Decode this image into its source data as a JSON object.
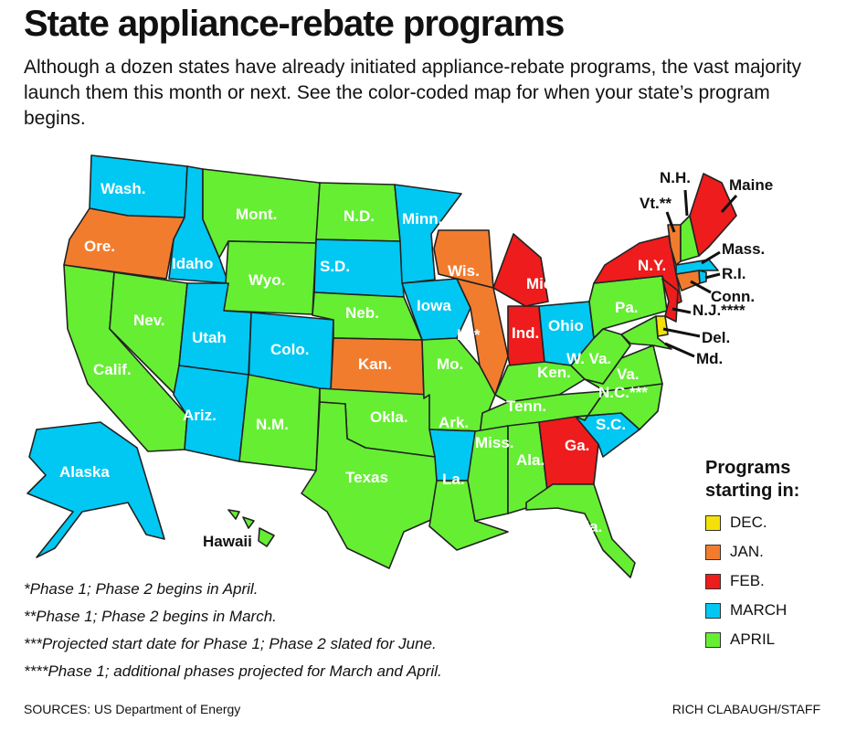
{
  "header": {
    "title": "State appliance-rebate programs",
    "subtitle": "Although a dozen states have already initiated appliance-rebate programs, the vast majority launch them this month or next. See the color-coded map for when your state’s program begins."
  },
  "legend": {
    "title_line1": "Programs",
    "title_line2": "starting in:",
    "items": [
      {
        "key": "dec",
        "label": "DEC.",
        "color": "#f5e10a"
      },
      {
        "key": "jan",
        "label": "JAN.",
        "color": "#f27c2e"
      },
      {
        "key": "feb",
        "label": "FEB.",
        "color": "#ee1c1c"
      },
      {
        "key": "mar",
        "label": "MARCH",
        "color": "#00c8f2"
      },
      {
        "key": "apr",
        "label": "APRIL",
        "color": "#66ee33"
      }
    ]
  },
  "states": [
    {
      "label": "Wash.",
      "start": "mar"
    },
    {
      "label": "Ore.",
      "start": "jan"
    },
    {
      "label": "Calif.",
      "start": "apr"
    },
    {
      "label": "Nev.",
      "start": "apr"
    },
    {
      "label": "Idaho",
      "start": "mar"
    },
    {
      "label": "Mont.",
      "start": "apr"
    },
    {
      "label": "Wyo.",
      "start": "apr"
    },
    {
      "label": "Utah",
      "start": "mar"
    },
    {
      "label": "Colo.",
      "start": "mar"
    },
    {
      "label": "Ariz.",
      "start": "mar"
    },
    {
      "label": "N.M.",
      "start": "apr"
    },
    {
      "label": "N.D.",
      "start": "apr"
    },
    {
      "label": "S.D.",
      "start": "mar"
    },
    {
      "label": "Neb.",
      "start": "apr"
    },
    {
      "label": "Kan.",
      "start": "jan"
    },
    {
      "label": "Okla.",
      "start": "apr"
    },
    {
      "label": "Texas",
      "start": "apr"
    },
    {
      "label": "Minn.",
      "start": "mar"
    },
    {
      "label": "Iowa",
      "start": "mar"
    },
    {
      "label": "Mo.",
      "start": "apr"
    },
    {
      "label": "Ark.",
      "start": "mar"
    },
    {
      "label": "La.",
      "start": "apr"
    },
    {
      "label": "Wis.",
      "start": "jan"
    },
    {
      "label": "Ill.*",
      "start": "jan"
    },
    {
      "label": "Mich.",
      "start": "feb"
    },
    {
      "label": "Ind.",
      "start": "feb"
    },
    {
      "label": "Ohio",
      "start": "mar"
    },
    {
      "label": "Ken.",
      "start": "apr"
    },
    {
      "label": "Tenn.",
      "start": "apr"
    },
    {
      "label": "Miss.",
      "start": "apr"
    },
    {
      "label": "Ala.",
      "start": "apr"
    },
    {
      "label": "Ga.",
      "start": "feb"
    },
    {
      "label": "Fla.",
      "start": "apr"
    },
    {
      "label": "S.C.",
      "start": "mar"
    },
    {
      "label": "N.C.***",
      "start": "apr"
    },
    {
      "label": "Va.",
      "start": "apr"
    },
    {
      "label": "W. Va.",
      "start": "apr"
    },
    {
      "label": "Pa.",
      "start": "apr"
    },
    {
      "label": "N.Y.",
      "start": "feb"
    },
    {
      "label": "N.J.****",
      "start": "feb"
    },
    {
      "label": "Del.",
      "start": "dec"
    },
    {
      "label": "Md.",
      "start": "apr"
    },
    {
      "label": "Conn.",
      "start": "jan"
    },
    {
      "label": "R.I.",
      "start": "mar"
    },
    {
      "label": "Mass.",
      "start": "mar"
    },
    {
      "label": "Vt.**",
      "start": "jan"
    },
    {
      "label": "N.H.",
      "start": "apr"
    },
    {
      "label": "Maine",
      "start": "feb"
    },
    {
      "label": "Alaska",
      "start": "mar"
    },
    {
      "label": "Hawaii",
      "start": "apr"
    }
  ],
  "footnotes": [
    "*Phase 1; Phase 2 begins in April.",
    "**Phase 1; Phase 2 begins in March.",
    "***Projected start date for Phase 1; Phase 2 slated for June.",
    "****Phase 1; additional phases projected for March and April."
  ],
  "source": "SOURCES: US Department of Energy",
  "credit": "RICH CLABAUGH/STAFF"
}
